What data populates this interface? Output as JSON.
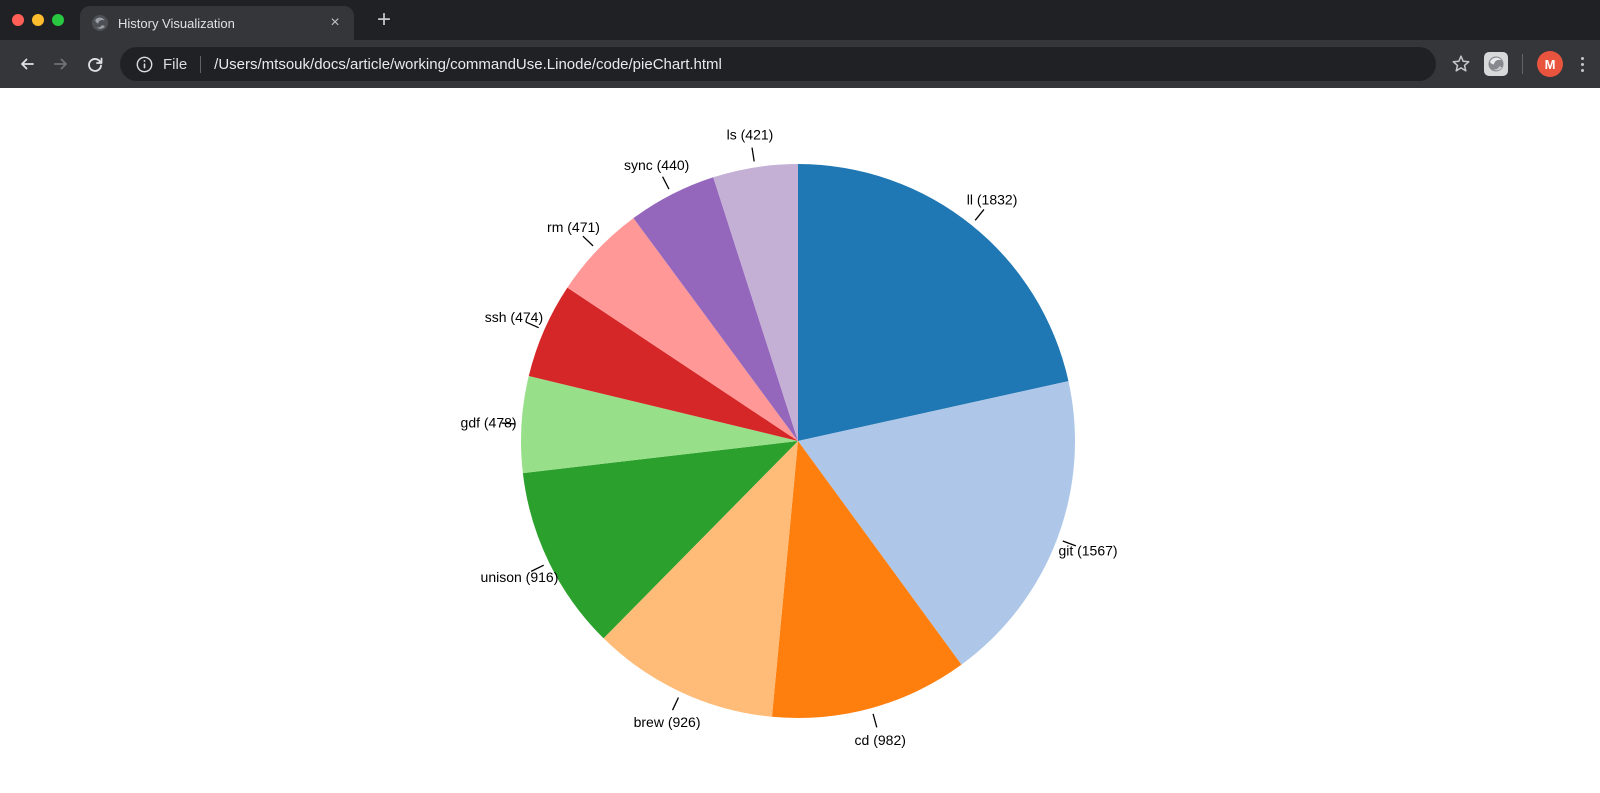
{
  "window": {
    "traffic_lights": {
      "close_color": "#ff5f57",
      "minimize_color": "#febc2e",
      "zoom_color": "#28c840"
    },
    "tab": {
      "title": "History Visualization",
      "close_icon": "×",
      "favicon_icon": "globe-icon"
    },
    "new_tab_icon": "+"
  },
  "toolbar": {
    "icons": [
      "back-arrow-icon",
      "forward-arrow-icon",
      "reload-icon",
      "info-icon",
      "bookmark-star-icon",
      "extension-icon",
      "profile-avatar",
      "kebab-menu-icon"
    ],
    "url_scheme_label": "File",
    "url_path": "/Users/mtsouk/docs/article/working/commandUse.Linode/code/pieChart.html",
    "avatar_initial": "M",
    "avatar_color": "#e8543e"
  },
  "chart_data": {
    "type": "pie",
    "title": "",
    "direction": "clockwise",
    "start_angle_deg": 0,
    "label_format": "name (value)",
    "slices": [
      {
        "label": "ll",
        "value": 1832,
        "color": "#1f77b4"
      },
      {
        "label": "git",
        "value": 1567,
        "color": "#aec7e8"
      },
      {
        "label": "cd",
        "value": 982,
        "color": "#ff7f0e"
      },
      {
        "label": "brew",
        "value": 926,
        "color": "#ffbb78"
      },
      {
        "label": "unison",
        "value": 916,
        "color": "#2ca02c"
      },
      {
        "label": "gdf",
        "value": 478,
        "color": "#98df8a"
      },
      {
        "label": "ssh",
        "value": 474,
        "color": "#d62728"
      },
      {
        "label": "rm",
        "value": 471,
        "color": "#ff9896"
      },
      {
        "label": "sync",
        "value": 440,
        "color": "#9467bd"
      },
      {
        "label": "ls",
        "value": 421,
        "color": "#c5b0d5"
      }
    ]
  }
}
